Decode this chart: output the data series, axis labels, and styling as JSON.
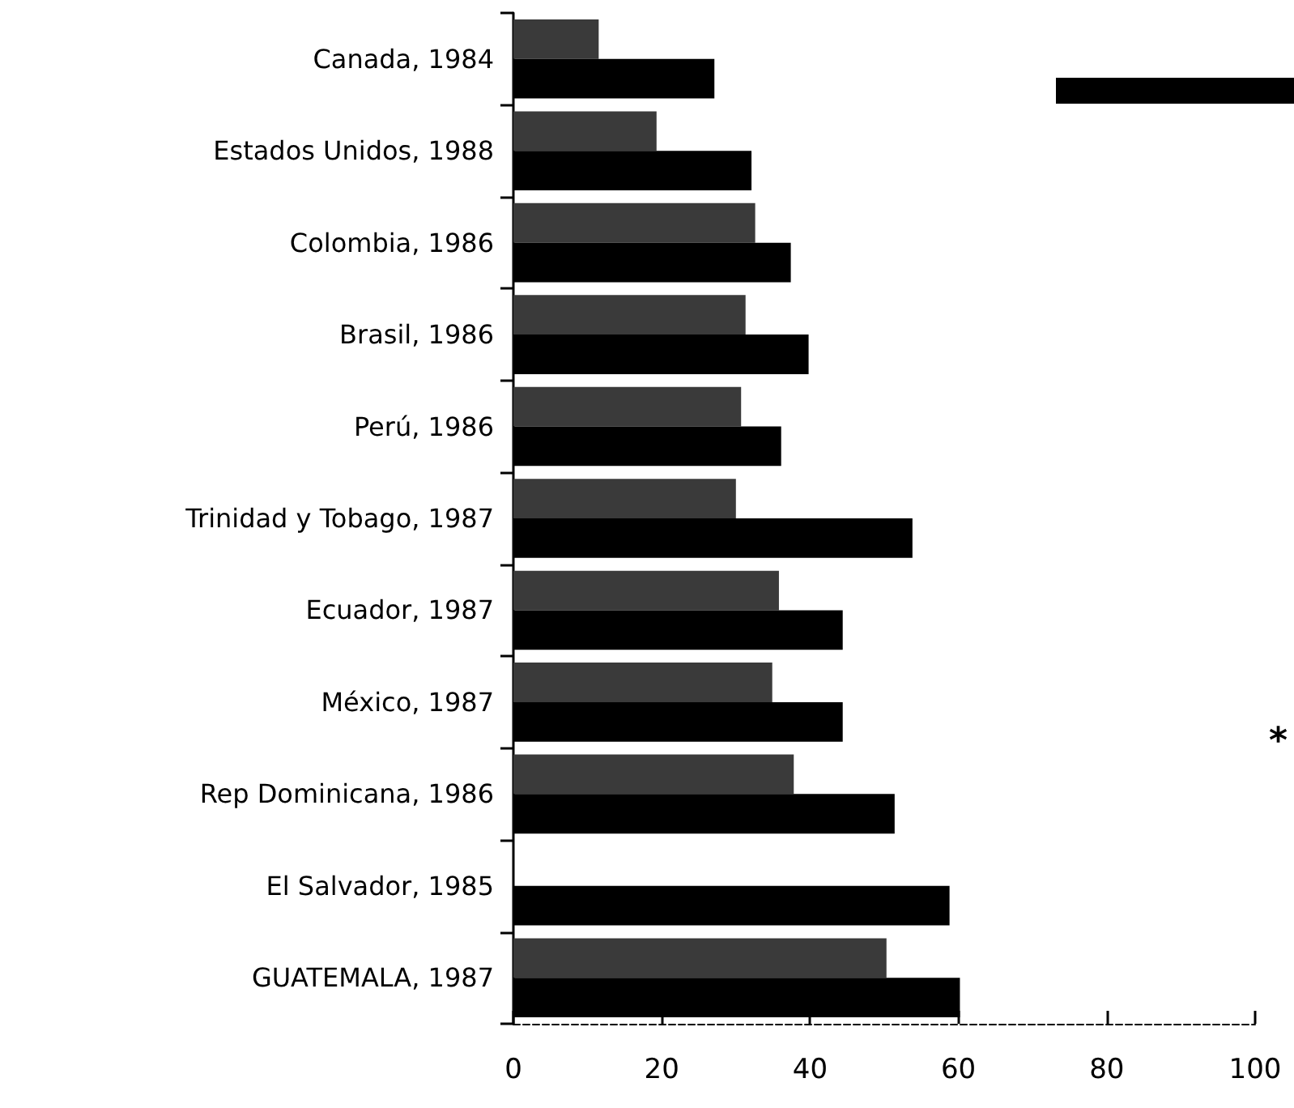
{
  "chart_data": {
    "type": "bar",
    "orientation": "horizontal",
    "categories": [
      "Canada, 1984",
      "Estados Unidos, 1988",
      "Colombia, 1986",
      "Brasil, 1986",
      "Perú, 1986",
      "Trinidad y Tobago, 1987",
      "Ecuador, 1987",
      "México, 1987",
      "Rep Dominicana, 1986",
      "El Salvador, 1985",
      "GUATEMALA, 1987"
    ],
    "series": [
      {
        "color": "#3a3a3a",
        "values": [
          11.5,
          19.3,
          32.6,
          31.3,
          30.7,
          30.0,
          35.8,
          34.9,
          37.8,
          null,
          50.3
        ]
      },
      {
        "color": "#000000",
        "values": [
          27.1,
          32.1,
          37.4,
          39.8,
          36.1,
          53.8,
          44.4,
          44.4,
          51.4,
          58.8,
          60.2
        ]
      }
    ],
    "xlim": [
      0,
      100
    ],
    "xticks": [
      0,
      20,
      40,
      60,
      80,
      100
    ],
    "annotations": [
      "*"
    ],
    "grid": false
  }
}
